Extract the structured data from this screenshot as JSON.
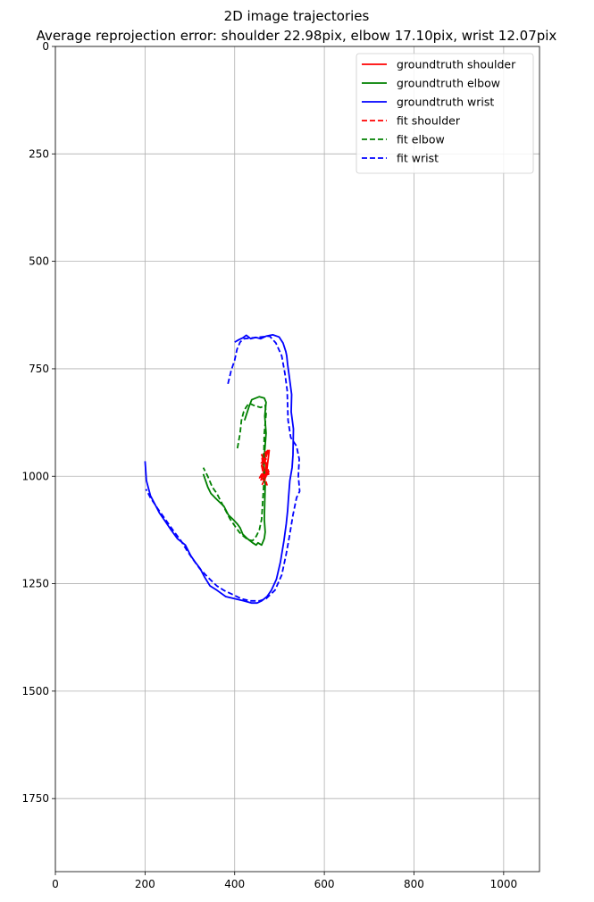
{
  "chart_data": {
    "type": "line",
    "title": "2D image trajectories",
    "subtitle": "Average reprojection error: shoulder 22.98pix, elbow 17.10pix, wrist 12.07pix",
    "xlabel": "",
    "ylabel": "",
    "xlim": [
      0,
      1080
    ],
    "ylim": [
      1920,
      0
    ],
    "y_inverted": true,
    "grid": true,
    "legend_position": "top-right",
    "x_ticks": [
      {
        "value": 0,
        "label": "0"
      },
      {
        "value": 200,
        "label": "200"
      },
      {
        "value": 400,
        "label": "400"
      },
      {
        "value": 600,
        "label": "600"
      },
      {
        "value": 800,
        "label": "800"
      },
      {
        "value": 1000,
        "label": "1000"
      }
    ],
    "y_ticks": [
      {
        "value": 0,
        "label": "0"
      },
      {
        "value": 250,
        "label": "250"
      },
      {
        "value": 500,
        "label": "500"
      },
      {
        "value": 750,
        "label": "750"
      },
      {
        "value": 1000,
        "label": "1000"
      },
      {
        "value": 1250,
        "label": "1250"
      },
      {
        "value": 1500,
        "label": "1500"
      },
      {
        "value": 1750,
        "label": "1750"
      }
    ],
    "series": [
      {
        "name": "groundtruth shoulder",
        "color": "#ff0000",
        "style": "solid",
        "x": [
          458,
          466,
          460,
          470,
          463,
          474,
          462,
          471,
          468,
          476,
          465,
          470,
          458,
          467,
          472,
          463,
          469,
          477,
          470,
          461
        ],
        "y": [
          1010,
          995,
          975,
          960,
          950,
          940,
          958,
          970,
          985,
          995,
          1000,
          985,
          1000,
          1010,
          975,
          965,
          950,
          940,
          1000,
          1020
        ]
      },
      {
        "name": "groundtruth elbow",
        "color": "#008000",
        "style": "solid",
        "x": [
          422,
          432,
          438,
          455,
          466,
          470,
          467,
          470,
          467,
          465,
          468,
          467,
          466,
          468,
          466,
          460,
          452,
          448,
          440,
          428,
          418,
          412,
          405,
          396,
          386,
          376,
          366,
          356,
          347,
          340,
          335,
          330
        ],
        "y": [
          870,
          838,
          822,
          815,
          818,
          828,
          860,
          900,
          940,
          980,
          1020,
          1060,
          1100,
          1130,
          1145,
          1160,
          1155,
          1160,
          1155,
          1145,
          1135,
          1120,
          1110,
          1100,
          1090,
          1070,
          1060,
          1050,
          1040,
          1025,
          1010,
          995
        ]
      },
      {
        "name": "groundtruth wrist",
        "color": "#0000ff",
        "style": "solid",
        "x": [
          200,
          203,
          212,
          222,
          232,
          245,
          258,
          272,
          290,
          302,
          312,
          323,
          333,
          345,
          360,
          380,
          400,
          420,
          438,
          450,
          460,
          472,
          482,
          493,
          502,
          510,
          515,
          518,
          520,
          523,
          528,
          530,
          531,
          526,
          527,
          522,
          518,
          516,
          514,
          508,
          499,
          485,
          470,
          458,
          447,
          436,
          426,
          418,
          410,
          400
        ],
        "y": [
          965,
          1010,
          1045,
          1065,
          1085,
          1105,
          1125,
          1145,
          1160,
          1185,
          1200,
          1215,
          1235,
          1255,
          1265,
          1280,
          1285,
          1290,
          1295,
          1295,
          1290,
          1280,
          1265,
          1240,
          1200,
          1150,
          1110,
          1080,
          1050,
          1010,
          980,
          950,
          890,
          850,
          810,
          770,
          740,
          720,
          710,
          690,
          676,
          671,
          674,
          680,
          677,
          680,
          672,
          678,
          682,
          688
        ]
      },
      {
        "name": "fit shoulder",
        "color": "#ff0000",
        "style": "dashed",
        "x": [
          455,
          463,
          459,
          470,
          475,
          466,
          471,
          462,
          476,
          469,
          460,
          466,
          472,
          458
        ],
        "y": [
          1005,
          990,
          970,
          955,
          940,
          965,
          985,
          1000,
          990,
          970,
          950,
          1000,
          1020,
          1000
        ]
      },
      {
        "name": "fit elbow",
        "color": "#008000",
        "style": "dashed",
        "x": [
          406,
          412,
          415,
          420,
          425,
          432,
          442,
          458,
          468,
          470,
          466,
          465,
          466,
          463,
          460,
          455,
          448,
          440,
          430,
          420,
          410,
          400,
          390,
          380,
          370,
          360,
          350,
          340,
          330
        ],
        "y": [
          935,
          900,
          870,
          850,
          840,
          830,
          835,
          840,
          835,
          855,
          900,
          950,
          1000,
          1050,
          1100,
          1125,
          1140,
          1150,
          1148,
          1140,
          1130,
          1115,
          1100,
          1080,
          1060,
          1040,
          1025,
          1000,
          980
        ]
      },
      {
        "name": "fit wrist",
        "color": "#0000ff",
        "style": "dashed",
        "x": [
          385,
          392,
          400,
          405,
          412,
          420,
          440,
          460,
          478,
          492,
          505,
          512,
          517,
          519,
          525,
          538,
          544,
          542,
          545,
          538,
          530,
          522,
          515,
          505,
          490,
          470,
          455,
          435,
          415,
          395,
          375,
          360,
          340,
          322,
          308,
          295,
          280,
          262,
          245,
          228,
          212,
          202
        ],
        "y": [
          785,
          755,
          730,
          705,
          688,
          680,
          678,
          676,
          674,
          690,
          720,
          760,
          800,
          870,
          910,
          930,
          960,
          1000,
          1035,
          1050,
          1090,
          1140,
          1180,
          1230,
          1265,
          1285,
          1290,
          1290,
          1285,
          1275,
          1265,
          1255,
          1235,
          1215,
          1195,
          1175,
          1150,
          1125,
          1100,
          1075,
          1050,
          1030
        ]
      }
    ]
  }
}
